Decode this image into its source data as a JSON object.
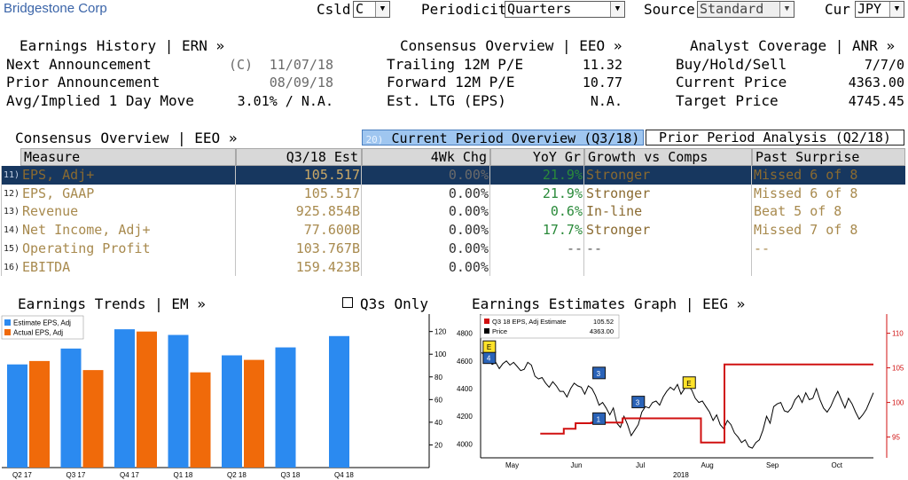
{
  "topbar": {
    "company": "Bridgestone Corp",
    "csld_label": "Csld",
    "csld_value": "C",
    "periodicity_label": "Periodicity",
    "periodicity_value": "Quarters",
    "source_label": "Source",
    "source_value": "Standard",
    "cur_label": "Cur",
    "cur_value": "JPY"
  },
  "earnings_history": {
    "title": "Earnings History | ERN »",
    "rows": [
      {
        "label": "Next Announcement",
        "prefix": "(C)",
        "value": "11/07/18"
      },
      {
        "label": "Prior Announcement",
        "prefix": "",
        "value": "08/09/18"
      },
      {
        "label": "Avg/Implied 1 Day Move",
        "prefix": "",
        "value": "3.01% / N.A."
      }
    ]
  },
  "consensus_overview": {
    "title": "Consensus Overview | EEO »",
    "rows": [
      {
        "label": "Trailing 12M P/E",
        "value": "11.32"
      },
      {
        "label": "Forward 12M P/E",
        "value": "10.77"
      },
      {
        "label": "Est. LTG (EPS)",
        "value": "N.A."
      }
    ]
  },
  "analyst_coverage": {
    "title": "Analyst Coverage | ANR »",
    "rows": [
      {
        "label": "Buy/Hold/Sell",
        "value": "7/7/0"
      },
      {
        "label": "Current Price",
        "value": "4363.00"
      },
      {
        "label": "Target Price",
        "value": "4745.45"
      }
    ]
  },
  "table_section": {
    "title": "Consensus Overview | EEO »",
    "tab_current_num": "20)",
    "tab_current": "Current Period Overview (Q3/18)",
    "tab_prior": "Prior Period Analysis (Q2/18)",
    "headers": [
      "Measure",
      "Q3/18 Est",
      "4Wk Chg",
      "YoY Gr",
      "Growth vs Comps",
      "Past Surprise"
    ],
    "rows": [
      {
        "num": "11)",
        "measure": "EPS, Adj+",
        "est": "105.517",
        "chg": "0.00%",
        "yoy": "21.9%",
        "comps": "Stronger",
        "surprise": "Missed 6 of 8"
      },
      {
        "num": "12)",
        "measure": "EPS, GAAP",
        "est": "105.517",
        "chg": "0.00%",
        "yoy": "21.9%",
        "comps": "Stronger",
        "surprise": "Missed 6 of 8"
      },
      {
        "num": "13)",
        "measure": "Revenue",
        "est": "925.854B",
        "chg": "0.00%",
        "yoy": "0.6%",
        "comps": "In-line",
        "surprise": "Beat 5 of 8"
      },
      {
        "num": "14)",
        "measure": "Net Income, Adj+",
        "est": "77.600B",
        "chg": "0.00%",
        "yoy": "17.7%",
        "comps": "Stronger",
        "surprise": "Missed 7 of 8"
      },
      {
        "num": "15)",
        "measure": "Operating Profit",
        "est": "103.767B",
        "chg": "0.00%",
        "yoy": "--",
        "comps": "--",
        "surprise": "--"
      },
      {
        "num": "16)",
        "measure": "EBITDA",
        "est": "159.423B",
        "chg": "0.00%",
        "yoy": "",
        "comps": "",
        "surprise": ""
      }
    ]
  },
  "earnings_trends": {
    "title": "Earnings Trends | EM »",
    "q3_only_label": "Q3s Only"
  },
  "earnings_estimates": {
    "title": "Earnings Estimates Graph | EEG »"
  },
  "chart_data": [
    {
      "type": "bar",
      "categories": [
        "Q2 17",
        "Q3 17",
        "Q4 17",
        "Q1 18",
        "Q2 18",
        "Q3 18",
        "Q4 18"
      ],
      "series": [
        {
          "name": "Estimate EPS, Adj",
          "color": "#2b8af0",
          "values": [
            91,
            105,
            122,
            117,
            99,
            106,
            116
          ]
        },
        {
          "name": "Actual EPS, Adj",
          "color": "#f06a0a",
          "values": [
            94,
            86,
            120,
            84,
            95,
            null,
            null
          ]
        }
      ],
      "ylim": [
        0,
        126
      ],
      "yticks": [
        "20",
        "40",
        "60",
        "80",
        "100",
        "120"
      ],
      "legend": "top-left"
    },
    {
      "type": "line",
      "legend_rows": [
        {
          "name": "Q3 18 EPS, Adj Estimate",
          "value": "105.52",
          "color": "#d01010"
        },
        {
          "name": "Price",
          "value": "4363.00",
          "color": "#000000"
        }
      ],
      "x_labels": [
        "May",
        "Jun",
        "Jul",
        "Aug",
        "Sep",
        "Oct"
      ],
      "year_label": "2018",
      "left_ticks": [
        "4000",
        "4200",
        "4400",
        "4600",
        "4800"
      ],
      "right_ticks": [
        "95",
        "100",
        "105",
        "110"
      ],
      "left_ylim": [
        3900,
        4900
      ],
      "right_ylim": [
        92,
        112
      ],
      "price_series": [
        4660,
        4640,
        4600,
        4575,
        4590,
        4545,
        4580,
        4600,
        4570,
        4590,
        4560,
        4530,
        4540,
        4590,
        4570,
        4490,
        4470,
        4480,
        4440,
        4410,
        4450,
        4420,
        4380,
        4380,
        4340,
        4400,
        4440,
        4420,
        4410,
        4360,
        4420,
        4400,
        4350,
        4280,
        4300,
        4260,
        4210,
        4260,
        4150,
        4120,
        4200,
        4140,
        4060,
        4100,
        4140,
        4230,
        4270,
        4260,
        4300,
        4310,
        4280,
        4340,
        4380,
        4410,
        4390,
        4430,
        4360,
        4400,
        4420,
        4390,
        4330,
        4300,
        4310,
        4270,
        4230,
        4170,
        4210,
        4140,
        4110,
        4170,
        4140,
        4080,
        4050,
        4010,
        4030,
        3980,
        3970,
        4010,
        4030,
        4100,
        4200,
        4150,
        4270,
        4290,
        4300,
        4240,
        4230,
        4260,
        4320,
        4350,
        4300,
        4370,
        4320,
        4330,
        4400,
        4320,
        4260,
        4230,
        4270,
        4330,
        4380,
        4320,
        4260,
        4330,
        4290,
        4230,
        4180,
        4210,
        4250,
        4310,
        4370
      ],
      "estimate_steps": [
        {
          "from": 0.15,
          "to": 0.21,
          "value": 95.5
        },
        {
          "from": 0.21,
          "to": 0.24,
          "value": 96.2
        },
        {
          "from": 0.24,
          "to": 0.28,
          "value": 97.0
        },
        {
          "from": 0.28,
          "to": 0.36,
          "value": 97.1
        },
        {
          "from": 0.36,
          "to": 0.56,
          "value": 97.7
        },
        {
          "from": 0.56,
          "to": 0.62,
          "value": 94.2
        },
        {
          "from": 0.62,
          "to": 1.0,
          "value": 105.5
        }
      ],
      "markers": [
        {
          "label": "4",
          "kind": "blue",
          "x": 0.02,
          "value": 4620
        },
        {
          "label": "E",
          "kind": "yellow",
          "x": 0.02,
          "value": 4700
        },
        {
          "label": "3",
          "kind": "blue",
          "x": 0.3,
          "value": 4510
        },
        {
          "label": "1",
          "kind": "blue",
          "x": 0.3,
          "value": 4180
        },
        {
          "label": "3",
          "kind": "blue",
          "x": 0.4,
          "value": 4300
        },
        {
          "label": "E",
          "kind": "yellow",
          "x": 0.53,
          "value": 4440
        }
      ]
    }
  ]
}
